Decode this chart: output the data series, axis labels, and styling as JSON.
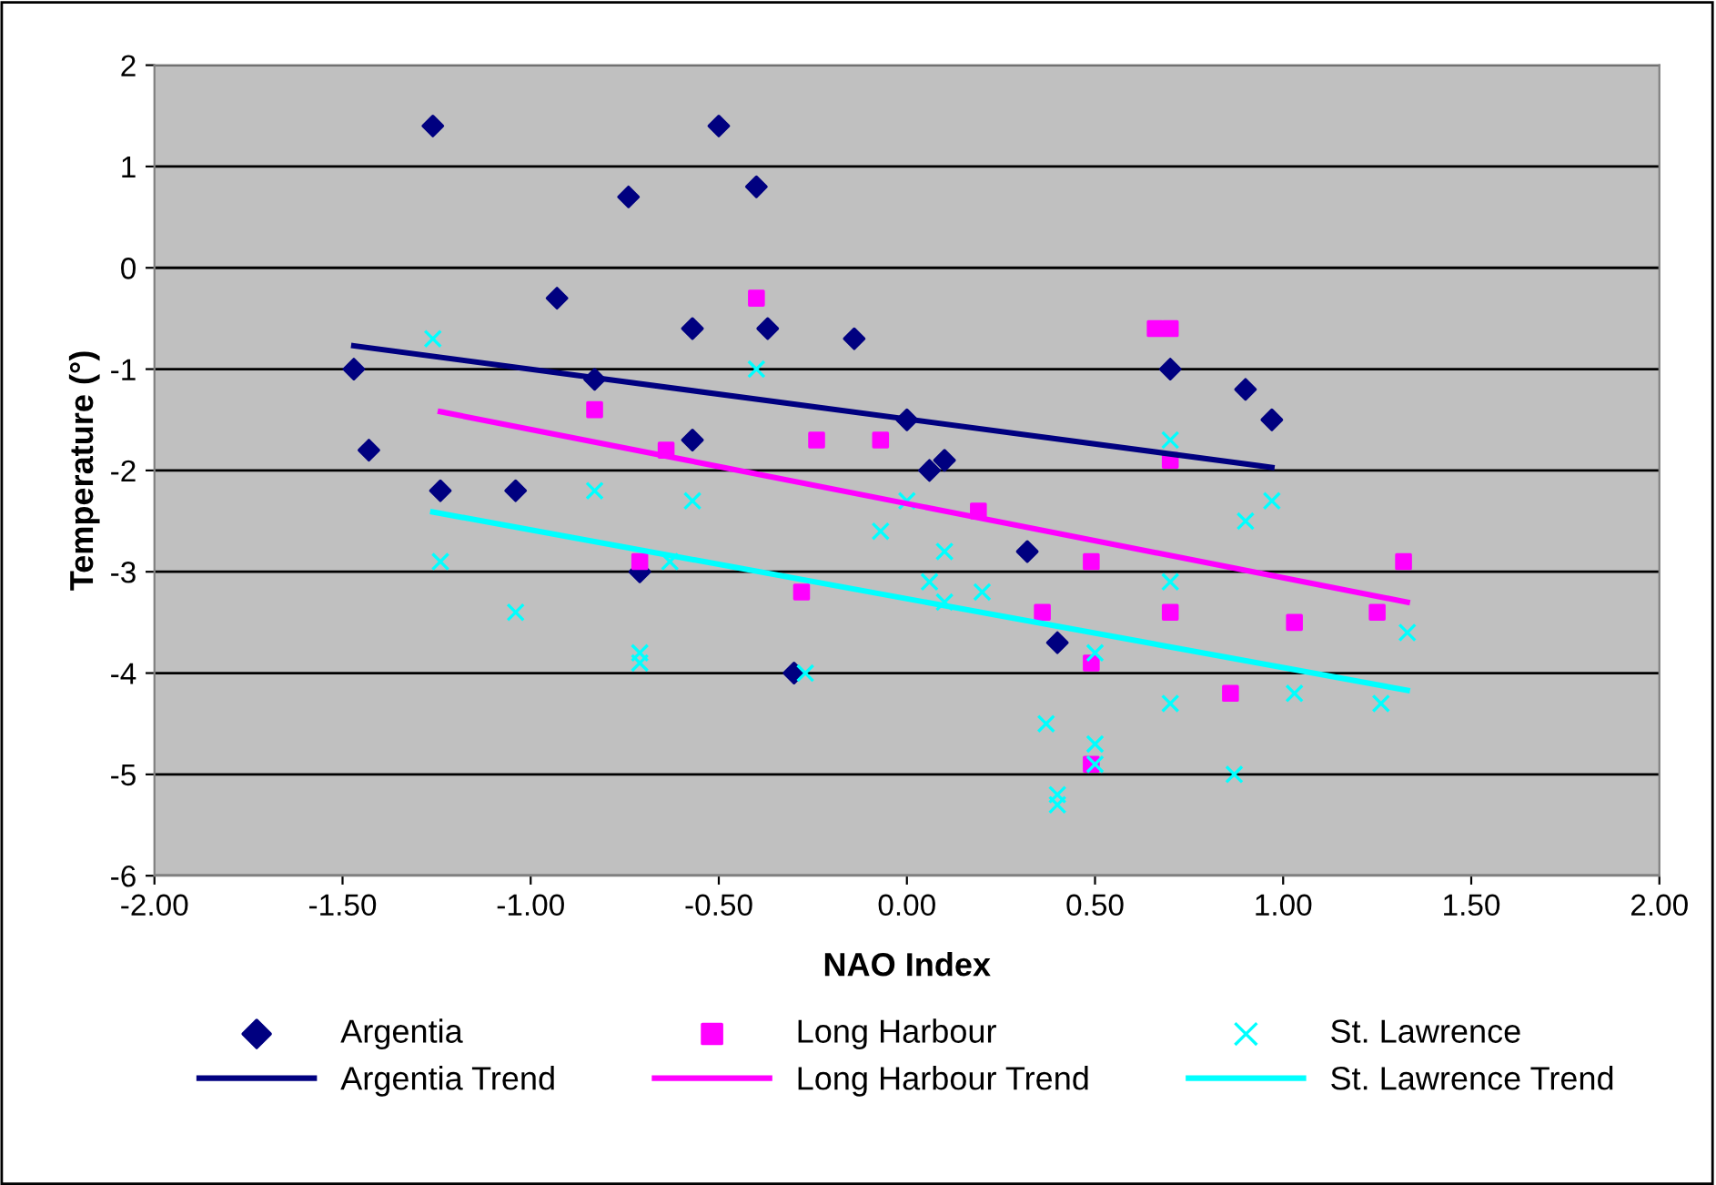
{
  "chart_data": {
    "type": "scatter",
    "xlabel": "NAO Index",
    "ylabel": "Temperature (°)",
    "xlim": [
      -2,
      2
    ],
    "ylim": [
      -6,
      2
    ],
    "xticks": [
      {
        "value": -2,
        "label": "-2.00"
      },
      {
        "value": -1.5,
        "label": "-1.50"
      },
      {
        "value": -1,
        "label": "-1.00"
      },
      {
        "value": -0.5,
        "label": "-0.50"
      },
      {
        "value": 0,
        "label": "0.00"
      },
      {
        "value": 0.5,
        "label": "0.50"
      },
      {
        "value": 1,
        "label": "1.00"
      },
      {
        "value": 1.5,
        "label": "1.50"
      },
      {
        "value": 2,
        "label": "2.00"
      }
    ],
    "yticks": [
      -6,
      -5,
      -4,
      -3,
      -2,
      -1,
      0,
      1,
      2
    ],
    "grid": "y",
    "legend": "bottom",
    "series": [
      {
        "name": "Argentia",
        "marker": "diamond",
        "color": "#000080",
        "x": [
          -1.47,
          -1.26,
          -1.43,
          -1.24,
          -1.04,
          -0.93,
          -0.83,
          -0.74,
          -0.71,
          -0.57,
          -0.57,
          -0.5,
          -0.4,
          -0.37,
          -0.3,
          -0.14,
          0,
          0.06,
          0.1,
          0.32,
          0.4,
          0.7,
          0.9,
          0.97
        ],
        "values": [
          -1.0,
          1.4,
          -1.8,
          -2.2,
          -2.2,
          -0.3,
          -1.1,
          0.7,
          -3.0,
          -0.6,
          -1.7,
          1.4,
          0.8,
          -0.6,
          -4.0,
          -0.7,
          -1.5,
          -2.0,
          -1.9,
          -2.8,
          -3.7,
          -1.0,
          -1.2,
          -1.5
        ]
      },
      {
        "name": "Argentia Trend",
        "type": "line",
        "line_style": "solid",
        "color": "#000080",
        "x": [
          -1.47,
          0.97
        ],
        "values": [
          -0.77,
          -1.97
        ]
      },
      {
        "name": "Long Harbour",
        "marker": "square",
        "color": "#ff00ff",
        "x": [
          -0.83,
          -0.64,
          -0.71,
          -0.4,
          -0.28,
          -0.24,
          -0.07,
          0.19,
          0.36,
          0.49,
          0.49,
          0.49,
          0.66,
          0.7,
          0.7,
          0.7,
          0.86,
          1.03,
          1.25,
          1.32
        ],
        "values": [
          -1.4,
          -1.8,
          -2.9,
          -0.3,
          -3.2,
          -1.7,
          -1.7,
          -2.4,
          -3.4,
          -2.9,
          -3.9,
          -4.9,
          -0.6,
          -0.6,
          -1.9,
          -3.4,
          -4.2,
          -3.5,
          -3.4,
          -2.9
        ]
      },
      {
        "name": "Long Harbour Trend",
        "type": "line",
        "line_style": "solid",
        "color": "#ff00ff",
        "x": [
          -1.24,
          1.33
        ],
        "values": [
          -1.42,
          -3.3
        ]
      },
      {
        "name": "St. Lawrence",
        "marker": "cross",
        "color": "#00ffff",
        "x": [
          -1.26,
          -1.24,
          -1.04,
          -0.83,
          -0.57,
          -0.71,
          -0.71,
          -0.63,
          -0.4,
          -0.27,
          -0.07,
          0,
          0.06,
          0.1,
          0.1,
          0.2,
          0.37,
          0.4,
          0.4,
          0.5,
          0.5,
          0.5,
          0.7,
          0.7,
          0.7,
          0.87,
          0.9,
          0.97,
          1.03,
          1.26,
          1.33
        ],
        "values": [
          -0.7,
          -2.9,
          -3.4,
          -2.2,
          -2.3,
          -3.8,
          -3.9,
          -2.9,
          -1.0,
          -4.0,
          -2.6,
          -2.3,
          -3.1,
          -2.8,
          -3.3,
          -3.2,
          -4.5,
          -5.2,
          -5.3,
          -3.8,
          -4.7,
          -4.9,
          -1.7,
          -3.1,
          -4.3,
          -5.0,
          -2.5,
          -2.3,
          -4.2,
          -4.3,
          -3.6
        ]
      },
      {
        "name": "St. Lawrence Trend",
        "type": "line",
        "line_style": "solid",
        "color": "#00ffff",
        "x": [
          -1.26,
          1.33
        ],
        "values": [
          -2.41,
          -4.17
        ]
      }
    ]
  }
}
